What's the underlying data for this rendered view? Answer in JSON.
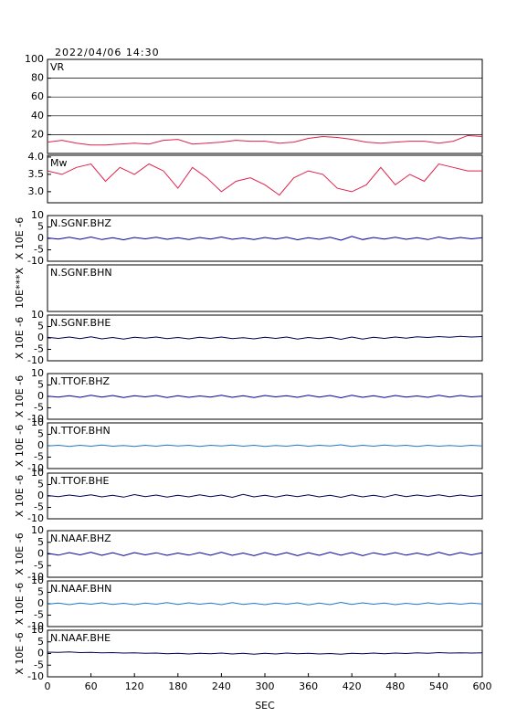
{
  "chart_data": [
    {
      "type": "line",
      "title": "2022/04/06  14:30",
      "label": "VR",
      "xlim": [
        0,
        600
      ],
      "ylim": [
        0,
        100
      ],
      "yticks": [
        20,
        40,
        60,
        80,
        100
      ],
      "grid": true,
      "x": [
        0,
        20,
        40,
        60,
        80,
        100,
        120,
        140,
        160,
        180,
        200,
        220,
        240,
        260,
        280,
        300,
        320,
        340,
        360,
        380,
        400,
        420,
        440,
        460,
        480,
        500,
        520,
        540,
        560,
        580,
        600
      ],
      "series": [
        {
          "color": "#e0204a",
          "values": [
            12,
            14,
            11,
            9,
            9,
            10,
            11,
            10,
            14,
            15,
            10,
            11,
            12,
            14,
            13,
            13,
            11,
            12,
            16,
            18,
            17,
            15,
            12,
            11,
            12,
            13,
            13,
            11,
            13,
            19,
            18
          ]
        }
      ]
    },
    {
      "type": "line",
      "label": "Mw",
      "xlim": [
        0,
        600
      ],
      "ylim": [
        2.68,
        4.05
      ],
      "yticks": [
        {
          "value": 3,
          "label": "3.0"
        },
        3.5,
        {
          "value": 4,
          "label": "4.0"
        }
      ],
      "grid": false,
      "x": [
        0,
        20,
        40,
        60,
        80,
        100,
        120,
        140,
        160,
        180,
        200,
        220,
        240,
        260,
        280,
        300,
        320,
        340,
        360,
        380,
        400,
        420,
        440,
        460,
        480,
        500,
        520,
        540,
        560,
        580,
        600
      ],
      "series": [
        {
          "color": "#e0204a",
          "values": [
            3.6,
            3.5,
            3.7,
            3.8,
            3.3,
            3.7,
            3.5,
            3.8,
            3.6,
            3.1,
            3.7,
            3.4,
            3.0,
            3.3,
            3.4,
            3.2,
            2.9,
            3.4,
            3.6,
            3.5,
            3.1,
            3.0,
            3.2,
            3.7,
            3.2,
            3.5,
            3.3,
            3.8,
            3.7,
            3.6,
            3.6
          ]
        }
      ]
    },
    {
      "type": "line",
      "label": "N.SGNF.BHZ",
      "y_label": "X 10E -6",
      "xlim": [
        0,
        600
      ],
      "ylim": [
        -10,
        10
      ],
      "yticks": [
        -10,
        -5,
        0,
        5,
        10
      ],
      "x": [
        0,
        15,
        30,
        45,
        60,
        75,
        90,
        105,
        120,
        135,
        150,
        165,
        180,
        195,
        210,
        225,
        240,
        255,
        270,
        285,
        300,
        315,
        330,
        345,
        360,
        375,
        390,
        405,
        420,
        435,
        450,
        465,
        480,
        495,
        510,
        525,
        540,
        555,
        570,
        585,
        600
      ],
      "series": [
        {
          "color": "#0000a0",
          "values": [
            0.2,
            -0.3,
            0.5,
            -0.4,
            0.6,
            -0.5,
            0.3,
            -0.6,
            0.4,
            -0.2,
            0.5,
            -0.4,
            0.3,
            -0.5,
            0.4,
            -0.3,
            0.6,
            -0.4,
            0.2,
            -0.5,
            0.4,
            -0.3,
            0.5,
            -0.6,
            0.3,
            -0.4,
            0.5,
            -0.8,
            0.9,
            -0.5,
            0.4,
            -0.3,
            0.5,
            -0.4,
            0.3,
            -0.5,
            0.6,
            -0.3,
            0.4,
            -0.2,
            0.3
          ]
        }
      ]
    },
    {
      "type": "line",
      "label": "N.SGNF.BHN",
      "y_label": "10E***X",
      "xlim": [
        0,
        600
      ]
    },
    {
      "type": "line",
      "label": "N.SGNF.BHE",
      "y_label": "X 10E -6",
      "xlim": [
        0,
        600
      ],
      "ylim": [
        -10,
        10
      ],
      "yticks": [
        -10,
        -5,
        0,
        5,
        10
      ],
      "x": [
        0,
        15,
        30,
        45,
        60,
        75,
        90,
        105,
        120,
        135,
        150,
        165,
        180,
        195,
        210,
        225,
        240,
        255,
        270,
        285,
        300,
        315,
        330,
        345,
        360,
        375,
        390,
        405,
        420,
        435,
        450,
        465,
        480,
        495,
        510,
        525,
        540,
        555,
        570,
        585,
        600
      ],
      "series": [
        {
          "color": "#000050",
          "values": [
            0.3,
            -0.2,
            0.4,
            -0.3,
            0.5,
            -0.4,
            0.2,
            -0.5,
            0.3,
            -0.1,
            0.4,
            -0.3,
            0.2,
            -0.4,
            0.3,
            -0.2,
            0.4,
            -0.3,
            0.1,
            -0.4,
            0.3,
            -0.2,
            0.4,
            -0.5,
            0.2,
            -0.3,
            0.3,
            -0.6,
            0.4,
            -0.5,
            0.3,
            -0.2,
            0.4,
            -0.1,
            0.5,
            0.2,
            0.6,
            0.3,
            0.7,
            0.4,
            0.6
          ]
        }
      ]
    },
    {
      "type": "line",
      "label": "N.TTOF.BHZ",
      "y_label": "X 10E -6",
      "xlim": [
        0,
        600
      ],
      "ylim": [
        -10,
        10
      ],
      "yticks": [
        -10,
        -5,
        0,
        5,
        10
      ],
      "x": [
        0,
        15,
        30,
        45,
        60,
        75,
        90,
        105,
        120,
        135,
        150,
        165,
        180,
        195,
        210,
        225,
        240,
        255,
        270,
        285,
        300,
        315,
        330,
        345,
        360,
        375,
        390,
        405,
        420,
        435,
        450,
        465,
        480,
        495,
        510,
        525,
        540,
        555,
        570,
        585,
        600
      ],
      "series": [
        {
          "color": "#0000a0",
          "values": [
            0.1,
            -0.3,
            0.3,
            -0.4,
            0.5,
            -0.3,
            0.4,
            -0.5,
            0.3,
            -0.2,
            0.4,
            -0.5,
            0.3,
            -0.4,
            0.2,
            -0.3,
            0.5,
            -0.4,
            0.3,
            -0.5,
            0.4,
            -0.2,
            0.3,
            -0.4,
            0.5,
            -0.3,
            0.4,
            -0.6,
            0.5,
            -0.4,
            0.3,
            -0.5,
            0.4,
            -0.3,
            0.2,
            -0.4,
            0.5,
            -0.3,
            0.4,
            -0.2,
            0.1
          ]
        }
      ]
    },
    {
      "type": "line",
      "label": "N.TTOF.BHN",
      "y_label": "X 10E -6",
      "xlim": [
        0,
        600
      ],
      "ylim": [
        -10,
        10
      ],
      "yticks": [
        -10,
        -5,
        0,
        5,
        10
      ],
      "x": [
        0,
        15,
        30,
        45,
        60,
        75,
        90,
        105,
        120,
        135,
        150,
        165,
        180,
        195,
        210,
        225,
        240,
        255,
        270,
        285,
        300,
        315,
        330,
        345,
        360,
        375,
        390,
        405,
        420,
        435,
        450,
        465,
        480,
        495,
        510,
        525,
        540,
        555,
        570,
        585,
        600
      ],
      "series": [
        {
          "color": "#1e78c8",
          "values": [
            -0.1,
            0.2,
            -0.3,
            0.2,
            -0.2,
            0.3,
            -0.2,
            0.1,
            -0.3,
            0.2,
            -0.2,
            0.3,
            -0.1,
            0.2,
            -0.3,
            0.2,
            -0.1,
            0.3,
            -0.2,
            0.2,
            -0.3,
            0.1,
            -0.2,
            0.3,
            -0.2,
            0.2,
            -0.1,
            0.4,
            -0.3,
            0.2,
            -0.2,
            0.3,
            -0.1,
            0.2,
            -0.3,
            0.2,
            -0.2,
            0.1,
            -0.2,
            0.2,
            -0.1
          ]
        }
      ]
    },
    {
      "type": "line",
      "label": "N.TTOF.BHE",
      "y_label": "X 10E -6",
      "xlim": [
        0,
        600
      ],
      "ylim": [
        -10,
        10
      ],
      "yticks": [
        -10,
        -5,
        0,
        5,
        10
      ],
      "x": [
        0,
        15,
        30,
        45,
        60,
        75,
        90,
        105,
        120,
        135,
        150,
        165,
        180,
        195,
        210,
        225,
        240,
        255,
        270,
        285,
        300,
        315,
        330,
        345,
        360,
        375,
        390,
        405,
        420,
        435,
        450,
        465,
        480,
        495,
        510,
        525,
        540,
        555,
        570,
        585,
        600
      ],
      "series": [
        {
          "color": "#000050",
          "values": [
            0.2,
            -0.3,
            0.4,
            -0.2,
            0.5,
            -0.4,
            0.3,
            -0.5,
            0.6,
            -0.3,
            0.4,
            -0.5,
            0.3,
            -0.4,
            0.5,
            -0.3,
            0.4,
            -0.6,
            0.7,
            -0.4,
            0.3,
            -0.5,
            0.4,
            -0.3,
            0.5,
            -0.4,
            0.3,
            -0.6,
            0.5,
            -0.4,
            0.3,
            -0.5,
            0.6,
            -0.3,
            0.4,
            -0.2,
            0.5,
            -0.3,
            0.4,
            -0.2,
            0.3
          ]
        }
      ]
    },
    {
      "type": "line",
      "label": "N.NAAF.BHZ",
      "y_label": "X 10E -6",
      "xlim": [
        0,
        600
      ],
      "ylim": [
        -10,
        10
      ],
      "yticks": [
        -10,
        -5,
        0,
        5,
        10
      ],
      "x": [
        0,
        15,
        30,
        45,
        60,
        75,
        90,
        105,
        120,
        135,
        150,
        165,
        180,
        195,
        210,
        225,
        240,
        255,
        270,
        285,
        300,
        315,
        330,
        345,
        360,
        375,
        390,
        405,
        420,
        435,
        450,
        465,
        480,
        495,
        510,
        525,
        540,
        555,
        570,
        585,
        600
      ],
      "series": [
        {
          "color": "#0000a0",
          "values": [
            0.3,
            -0.5,
            0.6,
            -0.4,
            0.7,
            -0.6,
            0.5,
            -0.7,
            0.6,
            -0.4,
            0.5,
            -0.6,
            0.4,
            -0.5,
            0.6,
            -0.5,
            0.7,
            -0.6,
            0.4,
            -0.7,
            0.6,
            -0.5,
            0.6,
            -0.7,
            0.5,
            -0.6,
            0.7,
            -0.5,
            0.6,
            -0.7,
            0.5,
            -0.4,
            0.6,
            -0.5,
            0.4,
            -0.6,
            0.7,
            -0.5,
            0.6,
            -0.4,
            0.5
          ]
        }
      ]
    },
    {
      "type": "line",
      "label": "N.NAAF.BHN",
      "y_label": "X 10E -6",
      "xlim": [
        0,
        600
      ],
      "ylim": [
        -10,
        10
      ],
      "yticks": [
        -10,
        -5,
        0,
        5,
        10
      ],
      "x": [
        0,
        15,
        30,
        45,
        60,
        75,
        90,
        105,
        120,
        135,
        150,
        165,
        180,
        195,
        210,
        225,
        240,
        255,
        270,
        285,
        300,
        315,
        330,
        345,
        360,
        375,
        390,
        405,
        420,
        435,
        450,
        465,
        480,
        495,
        510,
        525,
        540,
        555,
        570,
        585,
        600
      ],
      "series": [
        {
          "color": "#1e78c8",
          "values": [
            -0.2,
            0.3,
            -0.4,
            0.3,
            -0.2,
            0.4,
            -0.3,
            0.2,
            -0.4,
            0.3,
            -0.2,
            0.5,
            -0.3,
            0.4,
            -0.2,
            0.3,
            -0.4,
            0.5,
            -0.3,
            0.2,
            -0.4,
            0.3,
            -0.2,
            0.4,
            -0.5,
            0.3,
            -0.4,
            0.6,
            -0.3,
            0.4,
            -0.2,
            0.3,
            -0.4,
            0.2,
            -0.3,
            0.4,
            -0.2,
            0.3,
            -0.2,
            0.3,
            -0.1
          ]
        }
      ]
    },
    {
      "type": "line",
      "label": "N.NAAF.BHE",
      "y_label": "X 10E -6",
      "x_label": "SEC",
      "xlim": [
        0,
        600
      ],
      "ylim": [
        -10,
        10
      ],
      "yticks": [
        -10,
        -5,
        0,
        5,
        10
      ],
      "xticks": [
        0,
        60,
        120,
        180,
        240,
        300,
        360,
        420,
        480,
        540,
        600
      ],
      "x": [
        0,
        15,
        30,
        45,
        60,
        75,
        90,
        105,
        120,
        135,
        150,
        165,
        180,
        195,
        210,
        225,
        240,
        255,
        270,
        285,
        300,
        315,
        330,
        345,
        360,
        375,
        390,
        405,
        420,
        435,
        450,
        465,
        480,
        495,
        510,
        525,
        540,
        555,
        570,
        585,
        600
      ],
      "series": [
        {
          "color": "#000050",
          "values": [
            0.6,
            0.5,
            0.7,
            0.4,
            0.5,
            0.3,
            0.4,
            0.2,
            0.3,
            0.1,
            0.2,
            -0.1,
            0.1,
            -0.2,
            0.1,
            -0.1,
            0.2,
            -0.2,
            0.1,
            -0.3,
            0.1,
            -0.2,
            0.2,
            -0.1,
            0.1,
            -0.2,
            0.0,
            -0.3,
            0.1,
            -0.1,
            0.2,
            -0.1,
            0.2,
            0.0,
            0.3,
            0.1,
            0.4,
            0.2,
            0.3,
            0.2,
            0.3
          ]
        }
      ]
    }
  ]
}
